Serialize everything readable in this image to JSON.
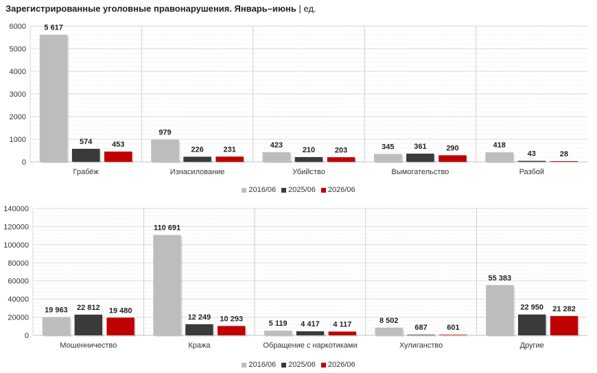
{
  "title": "Зарегистрированные уголовные правонарушения. Январь–июнь",
  "unit": "| ед.",
  "legend": [
    "2016/06",
    "2025/06",
    "2026/06"
  ],
  "colors": [
    "#bdbdbd",
    "#3a3a3a",
    "#c00000"
  ],
  "chart_data": [
    {
      "type": "bar",
      "categories": [
        "Грабёж",
        "Изнасилование",
        "Убийство",
        "Вымогательство",
        "Разбой"
      ],
      "series": [
        {
          "name": "2016/06",
          "values": [
            5617,
            979,
            423,
            345,
            418
          ]
        },
        {
          "name": "2025/06",
          "values": [
            574,
            226,
            210,
            361,
            43
          ]
        },
        {
          "name": "2026/06",
          "values": [
            453,
            231,
            203,
            290,
            28
          ]
        }
      ],
      "data_labels": [
        [
          "5 617",
          "979",
          "423",
          "345",
          "418"
        ],
        [
          "574",
          "226",
          "210",
          "361",
          "43"
        ],
        [
          "453",
          "231",
          "203",
          "290",
          "28"
        ]
      ],
      "yticks": [
        "0",
        "1000",
        "2000",
        "3000",
        "4000",
        "5000",
        "6000"
      ],
      "ylim": [
        0,
        6000
      ],
      "grid": true,
      "legend_position": "bottom"
    },
    {
      "type": "bar",
      "categories": [
        "Мошенничество",
        "Кража",
        "Обращение с наркотиками",
        "Хулиганство",
        "Другие"
      ],
      "series": [
        {
          "name": "2016/06",
          "values": [
            19963,
            110691,
            5119,
            8502,
            55383
          ]
        },
        {
          "name": "2025/06",
          "values": [
            22812,
            12249,
            4417,
            687,
            22950
          ]
        },
        {
          "name": "2026/06",
          "values": [
            19480,
            10293,
            4117,
            601,
            21282
          ]
        }
      ],
      "data_labels": [
        [
          "19 963",
          "110 691",
          "5 119",
          "8 502",
          "55 383"
        ],
        [
          "22 812",
          "12 249",
          "4 417",
          "687",
          "22 950"
        ],
        [
          "19 480",
          "10 293",
          "4 117",
          "601",
          "21 282"
        ]
      ],
      "yticks": [
        "0",
        "20000",
        "40000",
        "60000",
        "80000",
        "100000",
        "120000",
        "140000"
      ],
      "ylim": [
        0,
        140000
      ],
      "grid": true,
      "legend_position": "bottom"
    }
  ]
}
